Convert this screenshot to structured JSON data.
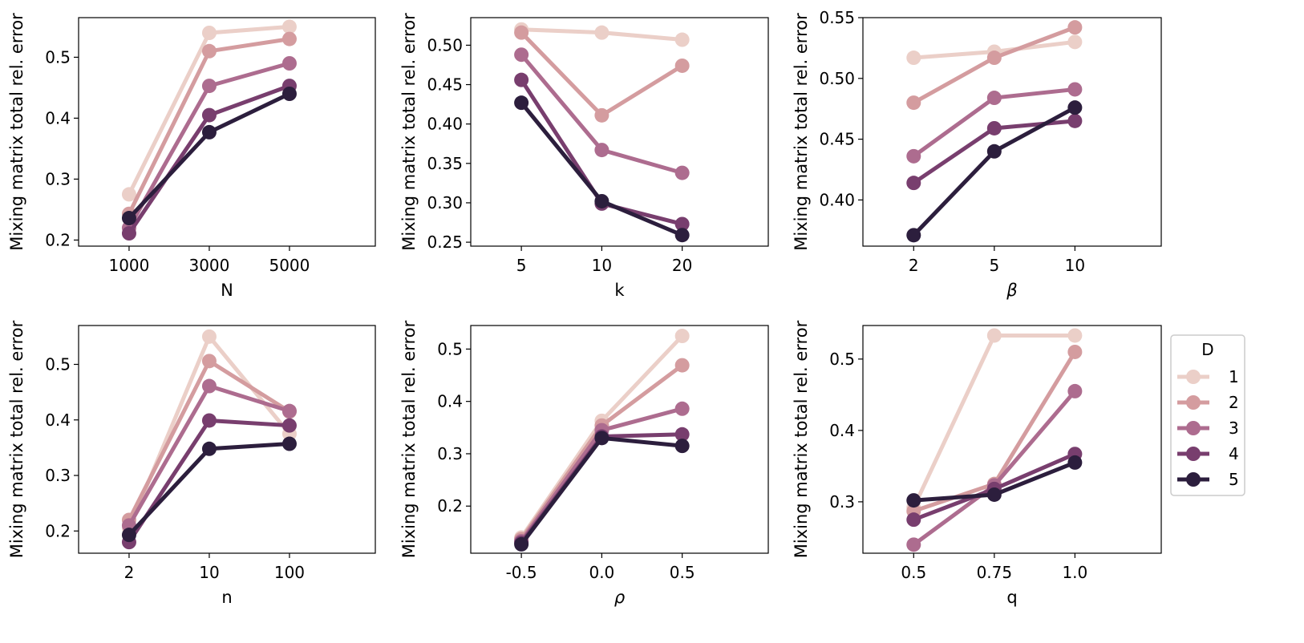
{
  "figure_ylabel": "Mixing matrix total rel. error",
  "legend": {
    "title": "D",
    "placement": "right",
    "entries": [
      {
        "label": "1",
        "color": "#ebcfc8"
      },
      {
        "label": "2",
        "color": "#d49c9f"
      },
      {
        "label": "3",
        "color": "#ad6c8f"
      },
      {
        "label": "4",
        "color": "#783e6e"
      },
      {
        "label": "5",
        "color": "#2c1e3d"
      }
    ]
  },
  "chart_data": [
    {
      "type": "line",
      "xlabel": "N",
      "ylabel": "Mixing matrix total rel. error",
      "categories": [
        "1000",
        "3000",
        "5000"
      ],
      "ylim": [
        0.19,
        0.565
      ],
      "yticks": [
        0.2,
        0.3,
        0.4,
        0.5
      ],
      "ytick_labels": [
        "0.2",
        "0.3",
        "0.4",
        "0.5"
      ],
      "series": [
        {
          "name": "1",
          "values": [
            0.275,
            0.54,
            0.55
          ]
        },
        {
          "name": "2",
          "values": [
            0.243,
            0.51,
            0.53
          ]
        },
        {
          "name": "3",
          "values": [
            0.22,
            0.453,
            0.49
          ]
        },
        {
          "name": "4",
          "values": [
            0.211,
            0.405,
            0.453
          ]
        },
        {
          "name": "5",
          "values": [
            0.236,
            0.377,
            0.44
          ]
        }
      ]
    },
    {
      "type": "line",
      "xlabel": "k",
      "ylabel": "Mixing matrix total rel. error",
      "categories": [
        "5",
        "10",
        "20"
      ],
      "ylim": [
        0.245,
        0.535
      ],
      "yticks": [
        0.25,
        0.3,
        0.35,
        0.4,
        0.45,
        0.5
      ],
      "ytick_labels": [
        "0.25",
        "0.30",
        "0.35",
        "0.40",
        "0.45",
        "0.50"
      ],
      "series": [
        {
          "name": "1",
          "values": [
            0.52,
            0.516,
            0.507
          ]
        },
        {
          "name": "2",
          "values": [
            0.516,
            0.411,
            0.474
          ]
        },
        {
          "name": "3",
          "values": [
            0.488,
            0.367,
            0.338
          ]
        },
        {
          "name": "4",
          "values": [
            0.456,
            0.299,
            0.273
          ]
        },
        {
          "name": "5",
          "values": [
            0.427,
            0.302,
            0.259
          ]
        }
      ]
    },
    {
      "type": "line",
      "xlabel": "β",
      "ylabel": "Mixing matrix total rel. error",
      "categories": [
        "2",
        "5",
        "10"
      ],
      "ylim": [
        0.362,
        0.55
      ],
      "yticks": [
        0.4,
        0.45,
        0.5,
        0.55
      ],
      "ytick_labels": [
        "0.40",
        "0.45",
        "0.50",
        "0.55"
      ],
      "series": [
        {
          "name": "1",
          "values": [
            0.517,
            0.522,
            0.53
          ]
        },
        {
          "name": "2",
          "values": [
            0.48,
            0.517,
            0.542
          ]
        },
        {
          "name": "3",
          "values": [
            0.436,
            0.484,
            0.491
          ]
        },
        {
          "name": "4",
          "values": [
            0.414,
            0.459,
            0.465
          ]
        },
        {
          "name": "5",
          "values": [
            0.371,
            0.44,
            0.476
          ]
        }
      ]
    },
    {
      "type": "line",
      "xlabel": "n",
      "ylabel": "Mixing matrix total rel. error",
      "categories": [
        "2",
        "10",
        "100"
      ],
      "ylim": [
        0.16,
        0.57
      ],
      "yticks": [
        0.2,
        0.3,
        0.4,
        0.5
      ],
      "ytick_labels": [
        "0.2",
        "0.3",
        "0.4",
        "0.5"
      ],
      "series": [
        {
          "name": "1",
          "values": [
            0.205,
            0.55,
            0.375
          ]
        },
        {
          "name": "2",
          "values": [
            0.22,
            0.506,
            0.415
          ]
        },
        {
          "name": "3",
          "values": [
            0.21,
            0.461,
            0.416
          ]
        },
        {
          "name": "4",
          "values": [
            0.18,
            0.399,
            0.39
          ]
        },
        {
          "name": "5",
          "values": [
            0.193,
            0.348,
            0.357
          ]
        }
      ]
    },
    {
      "type": "line",
      "xlabel": "ρ",
      "ylabel": "Mixing matrix total rel. error",
      "categories": [
        "-0.5",
        "0.0",
        "0.5"
      ],
      "ylim": [
        0.11,
        0.545
      ],
      "yticks": [
        0.2,
        0.3,
        0.4,
        0.5
      ],
      "ytick_labels": [
        "0.2",
        "0.3",
        "0.4",
        "0.5"
      ],
      "series": [
        {
          "name": "1",
          "values": [
            0.14,
            0.363,
            0.525
          ]
        },
        {
          "name": "2",
          "values": [
            0.137,
            0.354,
            0.469
          ]
        },
        {
          "name": "3",
          "values": [
            0.133,
            0.345,
            0.386
          ]
        },
        {
          "name": "4",
          "values": [
            0.13,
            0.333,
            0.337
          ]
        },
        {
          "name": "5",
          "values": [
            0.127,
            0.33,
            0.315
          ]
        }
      ]
    },
    {
      "type": "line",
      "xlabel": "q",
      "ylabel": "Mixing matrix total rel. error",
      "categories": [
        "0.5",
        "0.75",
        "1.0"
      ],
      "ylim": [
        0.228,
        0.547
      ],
      "yticks": [
        0.3,
        0.4,
        0.5
      ],
      "ytick_labels": [
        "0.3",
        "0.4",
        "0.5"
      ],
      "series": [
        {
          "name": "1",
          "values": [
            0.292,
            0.533,
            0.533
          ]
        },
        {
          "name": "2",
          "values": [
            0.287,
            0.325,
            0.51
          ]
        },
        {
          "name": "3",
          "values": [
            0.24,
            0.323,
            0.455
          ]
        },
        {
          "name": "4",
          "values": [
            0.275,
            0.318,
            0.367
          ]
        },
        {
          "name": "5",
          "values": [
            0.302,
            0.31,
            0.355
          ]
        }
      ]
    }
  ]
}
